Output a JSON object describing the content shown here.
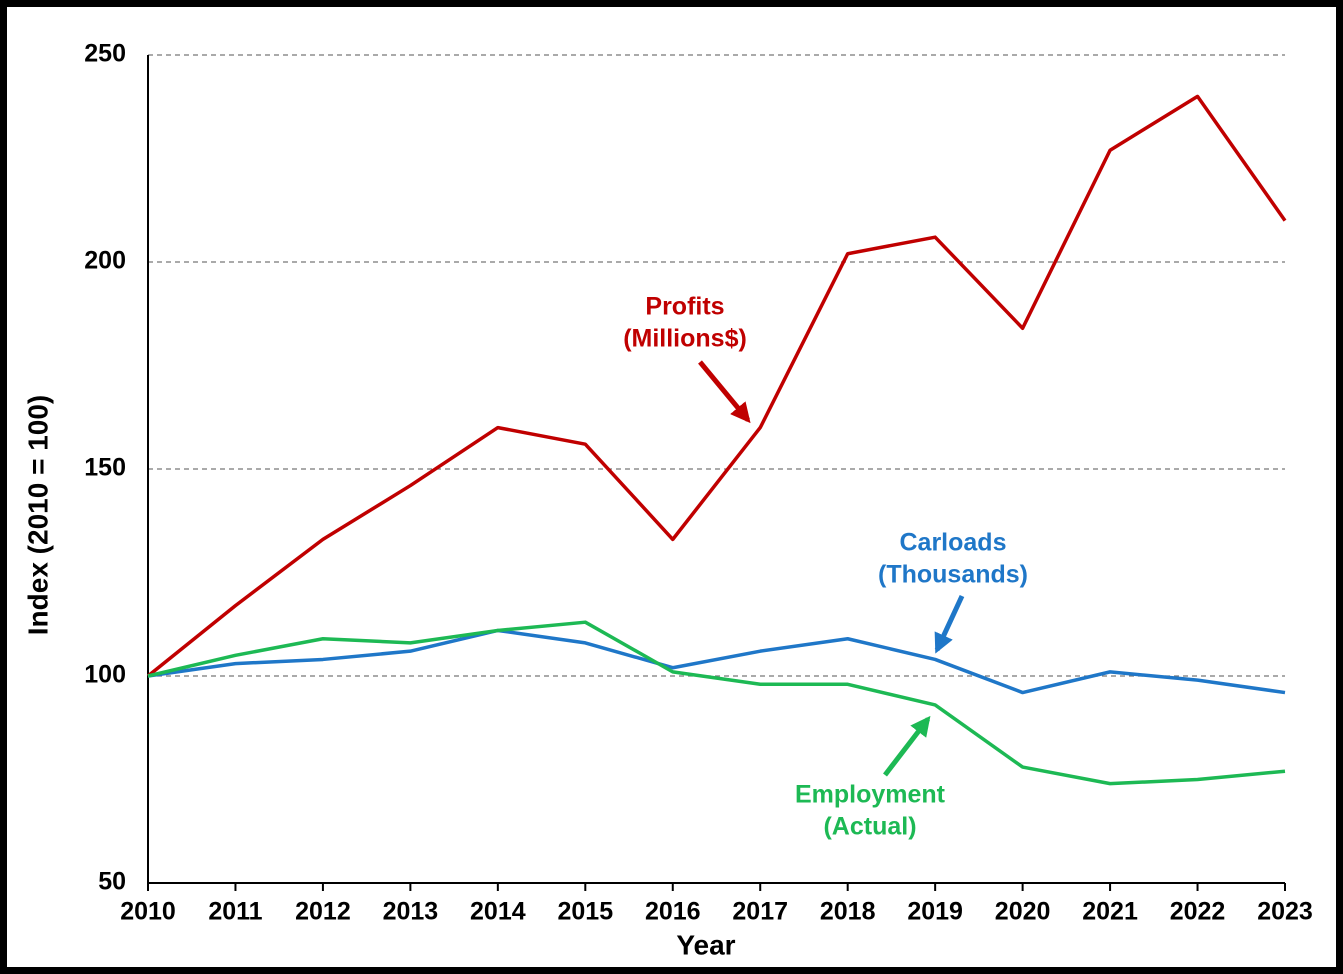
{
  "chart_data": {
    "type": "line",
    "x": [
      2010,
      2011,
      2012,
      2013,
      2014,
      2015,
      2016,
      2017,
      2018,
      2019,
      2020,
      2021,
      2022,
      2023
    ],
    "series": [
      {
        "color": "#c00000",
        "values": [
          100,
          117,
          133,
          146,
          160,
          156,
          133,
          160,
          202,
          206,
          184,
          227,
          240,
          210
        ]
      },
      {
        "color": "#1f77c8",
        "values": [
          100,
          103,
          104,
          106,
          111,
          108,
          102,
          106,
          109,
          104,
          96,
          101,
          99,
          96
        ]
      },
      {
        "color": "#1db954",
        "values": [
          100,
          105,
          109,
          108,
          111,
          113,
          101,
          98,
          98,
          93,
          78,
          74,
          75,
          77
        ]
      }
    ],
    "annotations": [
      {
        "lines": [
          "Profits",
          "(Millions$)"
        ]
      },
      {
        "lines": [
          "Carloads",
          "(Thousands)"
        ]
      },
      {
        "lines": [
          "Employment",
          "(Actual)"
        ]
      }
    ],
    "xlabel": "Year",
    "ylabel": "Index (2010 = 100)",
    "xlim": [
      2010,
      2023
    ],
    "xticks": [
      2010,
      2011,
      2012,
      2013,
      2014,
      2015,
      2016,
      2017,
      2018,
      2019,
      2020,
      2021,
      2022,
      2023
    ],
    "ylim": [
      50,
      250
    ],
    "yticks": [
      50,
      100,
      150,
      200,
      250
    ],
    "grid": true
  }
}
